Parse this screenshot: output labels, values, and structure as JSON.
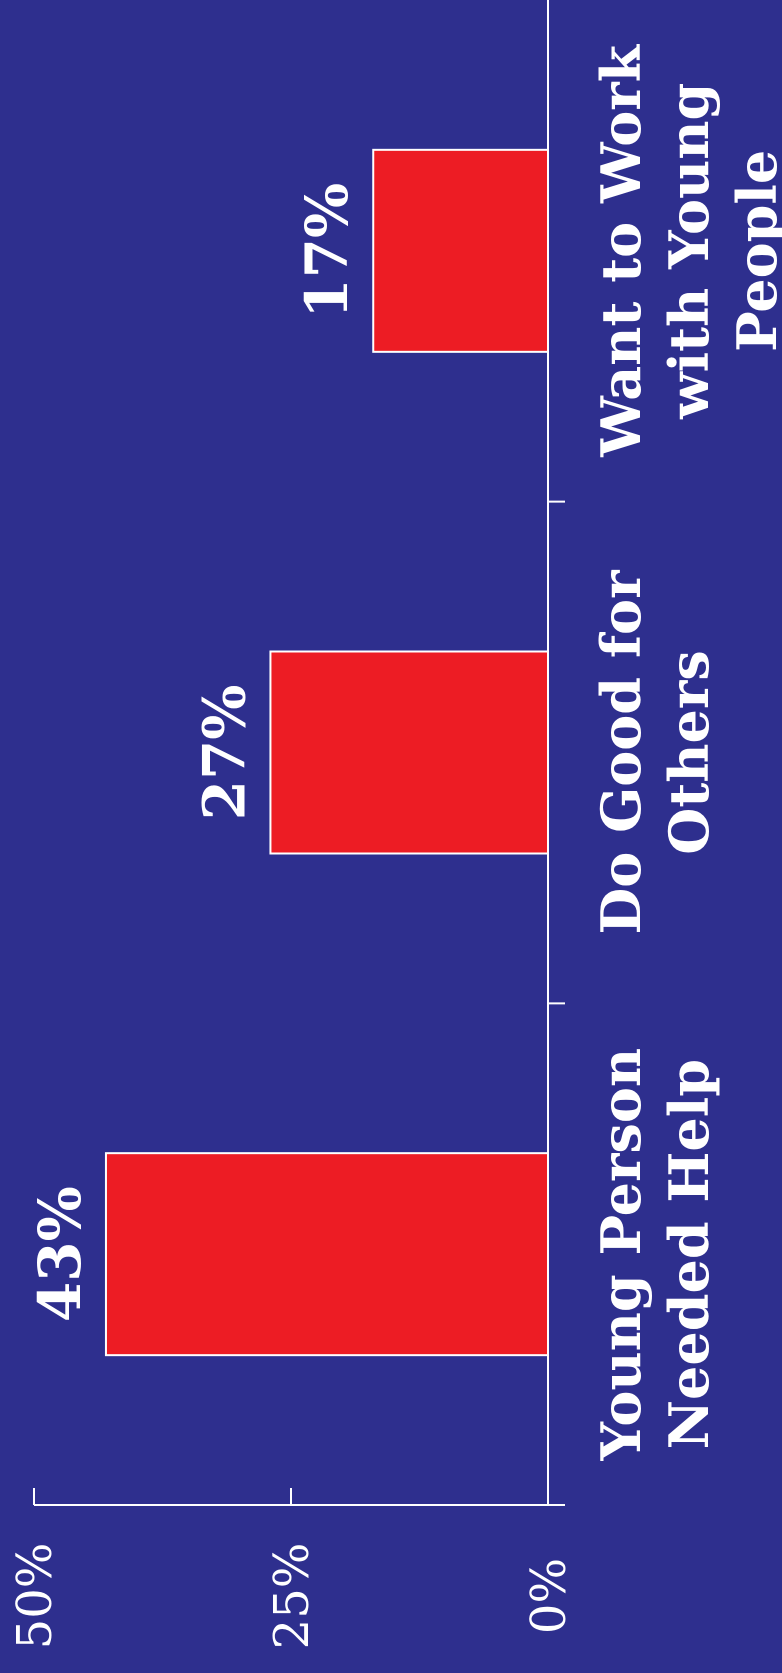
{
  "chart_data": {
    "type": "bar",
    "orientation": "rotated",
    "categories": [
      "Young Person Needed Help",
      "Do Good for Others",
      "Want to Work with Young People"
    ],
    "category_lines": [
      [
        "Young Person",
        "Needed Help"
      ],
      [
        "Do Good for",
        "Others"
      ],
      [
        "Want to Work",
        "with Young",
        "People"
      ]
    ],
    "values": [
      43,
      27,
      17
    ],
    "value_labels": [
      "43%",
      "27%",
      "17%"
    ],
    "ylim": [
      0,
      50
    ],
    "y_ticks": [
      0,
      25,
      50
    ],
    "y_tick_labels": [
      "0%",
      "25%",
      "50%"
    ],
    "grid": false,
    "colors": {
      "background": "#2e2f8e",
      "bar": "#ed1c24",
      "text": "#ffffff"
    }
  }
}
